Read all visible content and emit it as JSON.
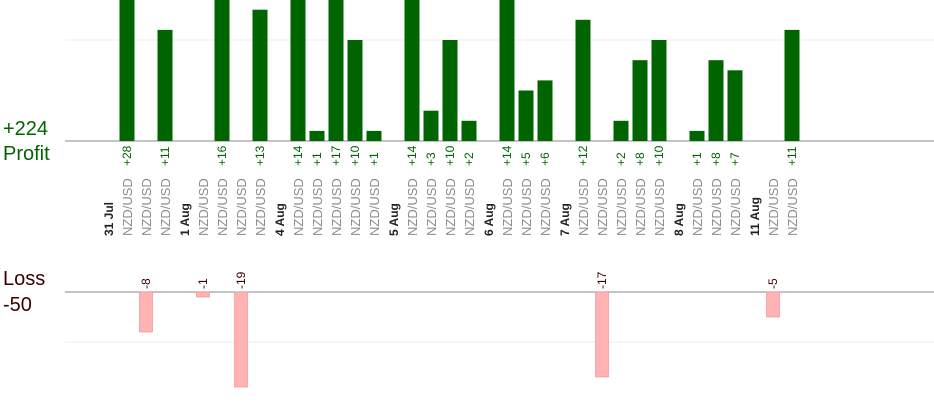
{
  "summary": {
    "profit_total": "+224",
    "profit_label": "Profit",
    "loss_label": "Loss",
    "loss_total": "-50"
  },
  "colors": {
    "profit_bar": "#006400",
    "loss_bar": "#ffb3b3",
    "profit_text": "#006400",
    "loss_text": "#3a0000",
    "date_text": "#222222",
    "pair_text": "#8c8c8c",
    "axis": "#888888",
    "grid": "#eeeeee"
  },
  "chart_data": {
    "type": "bar",
    "columns": [
      {
        "kind": "date",
        "label": "31 Jul"
      },
      {
        "kind": "trade",
        "label": "NZD/USD",
        "value": 28,
        "value_label": "+28"
      },
      {
        "kind": "trade",
        "label": "NZD/USD",
        "value": -8,
        "value_label": "-8"
      },
      {
        "kind": "trade",
        "label": "NZD/USD",
        "value": 11,
        "value_label": "+11"
      },
      {
        "kind": "date",
        "label": "1 Aug"
      },
      {
        "kind": "trade",
        "label": "NZD/USD",
        "value": -1,
        "value_label": "-1"
      },
      {
        "kind": "trade",
        "label": "NZD/USD",
        "value": 16,
        "value_label": "+16"
      },
      {
        "kind": "trade",
        "label": "NZD/USD",
        "value": -19,
        "value_label": "-19"
      },
      {
        "kind": "trade",
        "label": "NZD/USD",
        "value": 13,
        "value_label": "+13"
      },
      {
        "kind": "date",
        "label": "4 Aug"
      },
      {
        "kind": "trade",
        "label": "NZD/USD",
        "value": 14,
        "value_label": "+14"
      },
      {
        "kind": "trade",
        "label": "NZD/USD",
        "value": 1,
        "value_label": "+1"
      },
      {
        "kind": "trade",
        "label": "NZD/USD",
        "value": 17,
        "value_label": "+17"
      },
      {
        "kind": "trade",
        "label": "NZD/USD",
        "value": 10,
        "value_label": "+10"
      },
      {
        "kind": "trade",
        "label": "NZD/USD",
        "value": 1,
        "value_label": "+1"
      },
      {
        "kind": "date",
        "label": "5 Aug"
      },
      {
        "kind": "trade",
        "label": "NZD/USD",
        "value": 14,
        "value_label": "+14"
      },
      {
        "kind": "trade",
        "label": "NZD/USD",
        "value": 3,
        "value_label": "+3"
      },
      {
        "kind": "trade",
        "label": "NZD/USD",
        "value": 10,
        "value_label": "+10"
      },
      {
        "kind": "trade",
        "label": "NZD/USD",
        "value": 2,
        "value_label": "+2"
      },
      {
        "kind": "date",
        "label": "6 Aug"
      },
      {
        "kind": "trade",
        "label": "NZD/USD",
        "value": 14,
        "value_label": "+14"
      },
      {
        "kind": "trade",
        "label": "NZD/USD",
        "value": 5,
        "value_label": "+5"
      },
      {
        "kind": "trade",
        "label": "NZD/USD",
        "value": 6,
        "value_label": "+6"
      },
      {
        "kind": "date",
        "label": "7 Aug"
      },
      {
        "kind": "trade",
        "label": "NZD/USD",
        "value": 12,
        "value_label": "+12"
      },
      {
        "kind": "trade",
        "label": "NZD/USD",
        "value": -17,
        "value_label": "-17"
      },
      {
        "kind": "trade",
        "label": "NZD/USD",
        "value": 2,
        "value_label": "+2"
      },
      {
        "kind": "trade",
        "label": "NZD/USD",
        "value": 8,
        "value_label": "+8"
      },
      {
        "kind": "trade",
        "label": "NZD/USD",
        "value": 10,
        "value_label": "+10"
      },
      {
        "kind": "date",
        "label": "8 Aug"
      },
      {
        "kind": "trade",
        "label": "NZD/USD",
        "value": 1,
        "value_label": "+1"
      },
      {
        "kind": "trade",
        "label": "NZD/USD",
        "value": 8,
        "value_label": "+8"
      },
      {
        "kind": "trade",
        "label": "NZD/USD",
        "value": 7,
        "value_label": "+7"
      },
      {
        "kind": "date",
        "label": "11 Aug"
      },
      {
        "kind": "trade",
        "label": "NZD/USD",
        "value": -5,
        "value_label": "-5"
      },
      {
        "kind": "trade",
        "label": "NZD/USD",
        "value": 11,
        "value_label": "+11"
      }
    ],
    "profit_gridlines": [
      10
    ],
    "loss_gridlines": [
      -10
    ],
    "grid": true
  }
}
